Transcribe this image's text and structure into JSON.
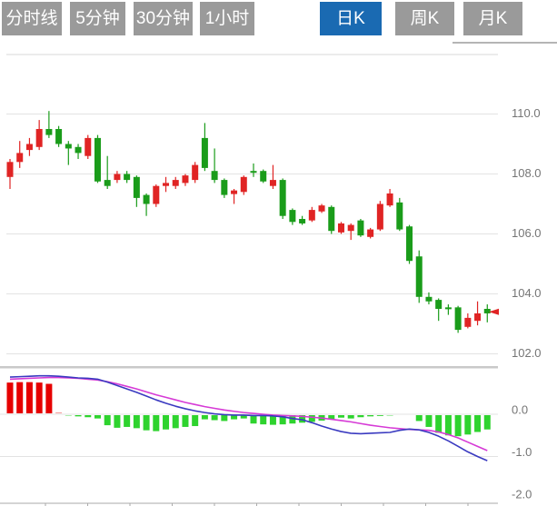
{
  "tabs": [
    {
      "id": "tab-minute-line",
      "label": "分时线",
      "active": false
    },
    {
      "id": "tab-5min",
      "label": "5分钟",
      "active": false
    },
    {
      "id": "tab-30min",
      "label": "30分钟",
      "active": false
    },
    {
      "id": "tab-1hour",
      "label": "1小时",
      "active": false
    },
    {
      "id": "tab-daily-k",
      "label": "日K",
      "active": true
    },
    {
      "id": "tab-weekly-k",
      "label": "周K",
      "active": false
    },
    {
      "id": "tab-monthly-k",
      "label": "月K",
      "active": false
    }
  ],
  "colors": {
    "tab_bg": "#9a9a9a",
    "tab_active_bg": "#1a6ab2",
    "tab_text": "#ffffff",
    "up": "#e02424",
    "down": "#1a9c1a",
    "hist_up": "#e60000",
    "hist_down": "#2ed32e",
    "dif_line": "#3a3ac0",
    "dea_line": "#d63ad6",
    "grid": "#e3e3e3",
    "pane_border": "#d8d8d8",
    "separator": "#c9c9c9",
    "axis_text": "#757575",
    "axis_line": "#aaaaaa",
    "marker": "#e02424"
  },
  "price_axis": {
    "labels": [
      "110.0",
      "108.0",
      "106.0",
      "104.0",
      "102.0"
    ],
    "values": [
      110,
      108,
      106,
      104,
      102
    ]
  },
  "macd_axis": {
    "labels": [
      "0.0",
      "-1.0",
      "-2.0"
    ],
    "values": [
      0,
      -1,
      -2
    ]
  },
  "last_price_marker": {
    "price": 103.4
  },
  "chart_data": {
    "type": "candlestick+macd",
    "title": "",
    "x_axis": {
      "tick_count": 11,
      "labels_visible": false
    },
    "price_pane": {
      "ylim": [
        101.9,
        112.0
      ],
      "gridlines": [
        110,
        108,
        106,
        104,
        102
      ],
      "legend_position": "none",
      "grid": true
    },
    "macd_pane": {
      "ylim": [
        -2.1,
        1.1
      ],
      "gridlines": [
        0,
        -1
      ],
      "series_names": [
        "DIF",
        "DEA",
        "MACD"
      ]
    },
    "candles": [
      [
        107.9,
        108.5,
        107.5,
        108.4
      ],
      [
        108.4,
        109.1,
        108.2,
        108.7
      ],
      [
        108.8,
        109.2,
        108.6,
        109.0
      ],
      [
        108.9,
        109.8,
        108.8,
        109.5
      ],
      [
        109.5,
        110.1,
        109.2,
        109.3
      ],
      [
        109.5,
        109.6,
        108.9,
        109.0
      ],
      [
        109.0,
        109.1,
        108.3,
        108.85
      ],
      [
        108.9,
        109.0,
        108.5,
        108.7
      ],
      [
        108.6,
        109.3,
        108.5,
        109.2
      ],
      [
        109.2,
        109.3,
        107.7,
        107.75
      ],
      [
        107.8,
        108.6,
        107.5,
        107.6
      ],
      [
        107.8,
        108.1,
        107.7,
        108.0
      ],
      [
        108.0,
        108.1,
        107.7,
        107.8
      ],
      [
        107.9,
        107.95,
        106.9,
        107.2
      ],
      [
        107.3,
        107.35,
        106.6,
        107.0
      ],
      [
        107.0,
        107.65,
        106.9,
        107.6
      ],
      [
        107.6,
        107.9,
        107.4,
        107.7
      ],
      [
        107.6,
        107.9,
        107.5,
        107.8
      ],
      [
        107.7,
        108.0,
        107.6,
        107.95
      ],
      [
        107.8,
        108.4,
        107.7,
        108.3
      ],
      [
        109.2,
        109.7,
        108.1,
        108.2
      ],
      [
        108.1,
        108.85,
        107.7,
        107.8
      ],
      [
        107.8,
        107.85,
        107.2,
        107.3
      ],
      [
        107.33,
        107.5,
        107.0,
        107.45
      ],
      [
        107.4,
        107.95,
        107.3,
        107.9
      ],
      [
        108.1,
        108.35,
        107.9,
        108.05
      ],
      [
        108.1,
        108.15,
        107.7,
        107.75
      ],
      [
        107.6,
        108.3,
        107.5,
        107.8
      ],
      [
        107.8,
        107.85,
        106.5,
        106.6
      ],
      [
        106.8,
        106.85,
        106.3,
        106.4
      ],
      [
        106.5,
        106.6,
        106.3,
        106.35
      ],
      [
        106.45,
        106.9,
        106.4,
        106.8
      ],
      [
        106.75,
        107.0,
        106.7,
        106.95
      ],
      [
        106.9,
        106.95,
        106.0,
        106.1
      ],
      [
        106.05,
        106.4,
        106.0,
        106.35
      ],
      [
        106.1,
        106.35,
        105.8,
        106.3
      ],
      [
        106.45,
        106.5,
        105.9,
        105.95
      ],
      [
        105.9,
        106.2,
        105.85,
        106.15
      ],
      [
        106.15,
        107.1,
        106.1,
        107.0
      ],
      [
        106.95,
        107.5,
        106.9,
        107.35
      ],
      [
        107.05,
        107.2,
        106.1,
        106.15
      ],
      [
        106.25,
        106.3,
        105.0,
        105.1
      ],
      [
        105.25,
        105.45,
        103.7,
        103.9
      ],
      [
        103.9,
        104.05,
        103.65,
        103.75
      ],
      [
        103.8,
        103.85,
        103.1,
        103.5
      ],
      [
        103.55,
        103.65,
        103.3,
        103.5
      ],
      [
        103.55,
        103.6,
        102.7,
        102.8
      ],
      [
        102.9,
        103.35,
        102.85,
        103.2
      ],
      [
        103.1,
        103.75,
        102.95,
        103.35
      ],
      [
        103.5,
        103.65,
        103.05,
        103.35
      ]
    ],
    "macd": {
      "hist": [
        0.75,
        0.76,
        0.76,
        0.75,
        0.72,
        0.03,
        -0.03,
        -0.05,
        -0.07,
        -0.1,
        -0.26,
        -0.32,
        -0.3,
        -0.33,
        -0.38,
        -0.4,
        -0.36,
        -0.33,
        -0.3,
        -0.28,
        -0.12,
        -0.14,
        -0.16,
        -0.12,
        -0.1,
        -0.22,
        -0.24,
        -0.25,
        -0.24,
        -0.22,
        -0.2,
        -0.18,
        -0.15,
        -0.12,
        -0.08,
        -0.1,
        -0.07,
        -0.05,
        -0.04,
        -0.03,
        -0.02,
        -0.01,
        -0.16,
        -0.3,
        -0.44,
        -0.5,
        -0.52,
        -0.48,
        -0.42,
        -0.36
      ],
      "dif": [
        0.88,
        0.89,
        0.9,
        0.91,
        0.91,
        0.9,
        0.88,
        0.86,
        0.85,
        0.83,
        0.76,
        0.68,
        0.6,
        0.52,
        0.43,
        0.34,
        0.26,
        0.19,
        0.13,
        0.08,
        0.04,
        0.01,
        -0.01,
        -0.02,
        -0.02,
        -0.03,
        -0.03,
        -0.04,
        -0.06,
        -0.1,
        -0.13,
        -0.2,
        -0.28,
        -0.35,
        -0.41,
        -0.45,
        -0.46,
        -0.45,
        -0.44,
        -0.43,
        -0.38,
        -0.35,
        -0.37,
        -0.43,
        -0.52,
        -0.63,
        -0.76,
        -0.89,
        -1.0,
        -1.1
      ],
      "dea": [
        0.83,
        0.84,
        0.85,
        0.86,
        0.87,
        0.87,
        0.86,
        0.85,
        0.83,
        0.81,
        0.77,
        0.72,
        0.66,
        0.6,
        0.53,
        0.46,
        0.4,
        0.34,
        0.28,
        0.23,
        0.18,
        0.14,
        0.1,
        0.07,
        0.04,
        0.02,
        0.0,
        -0.02,
        -0.03,
        -0.04,
        -0.05,
        -0.07,
        -0.09,
        -0.12,
        -0.15,
        -0.18,
        -0.22,
        -0.26,
        -0.29,
        -0.32,
        -0.34,
        -0.36,
        -0.37,
        -0.38,
        -0.42,
        -0.48,
        -0.56,
        -0.66,
        -0.76,
        -0.86
      ]
    }
  }
}
